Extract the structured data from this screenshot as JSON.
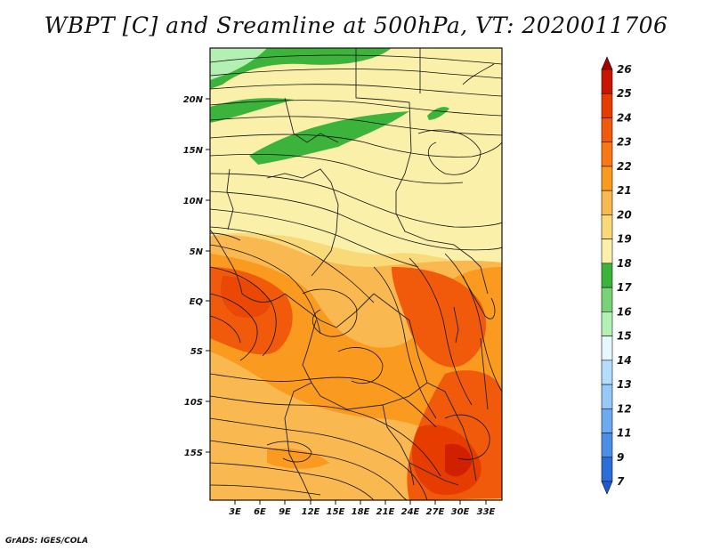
{
  "title": "WBPT [C] and Sreamline at 500hPa, VT: 2020011706",
  "credit": "GrADS: IGES/COLA",
  "map": {
    "lat_labels": [
      "20N",
      "15N",
      "10N",
      "5N",
      "EQ",
      "5S",
      "10S",
      "15S"
    ],
    "lon_labels": [
      "3E",
      "6E",
      "9E",
      "12E",
      "15E",
      "18E",
      "21E",
      "24E",
      "27E",
      "30E",
      "33E"
    ]
  },
  "colorbar": {
    "levels": [
      {
        "label": "26",
        "color": "#a50000"
      },
      {
        "label": "25",
        "color": "#c81400"
      },
      {
        "label": "24",
        "color": "#e63c00"
      },
      {
        "label": "23",
        "color": "#f05a0a"
      },
      {
        "label": "22",
        "color": "#fa7814"
      },
      {
        "label": "21",
        "color": "#fa9a1e"
      },
      {
        "label": "20",
        "color": "#fab850"
      },
      {
        "label": "19",
        "color": "#fada78"
      },
      {
        "label": "18",
        "color": "#faf0aa"
      },
      {
        "label": "17",
        "color": "#3cb43c"
      },
      {
        "label": "16",
        "color": "#78d278"
      },
      {
        "label": "15",
        "color": "#b4f0b4"
      },
      {
        "label": "14",
        "color": "#e6f8ff"
      },
      {
        "label": "13",
        "color": "#b4dcff"
      },
      {
        "label": "12",
        "color": "#96c8f8"
      },
      {
        "label": "11",
        "color": "#6eaaf0"
      },
      {
        "label": "9",
        "color": "#4a8ee6"
      },
      {
        "label": "7",
        "color": "#2a6ed6"
      }
    ],
    "bottom_color": "#1e5ad2"
  }
}
